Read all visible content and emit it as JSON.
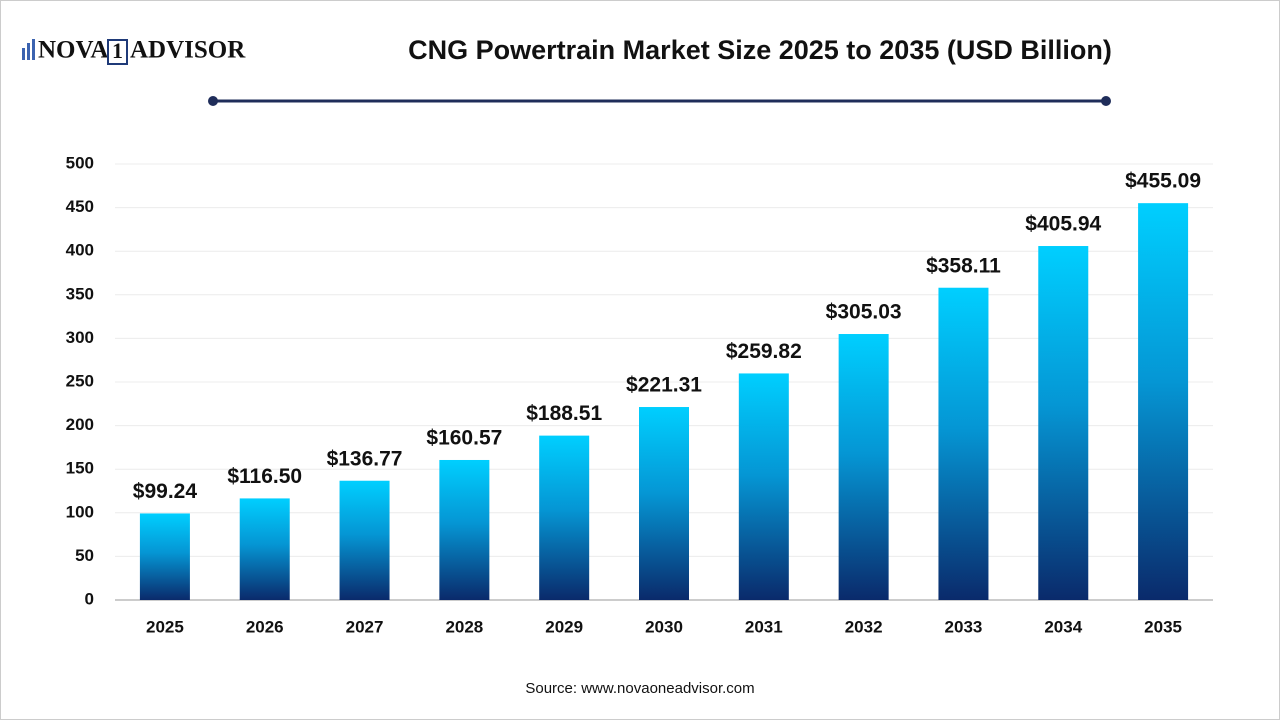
{
  "logo": {
    "left": "NOVA",
    "mark": "1",
    "right": "ADVISOR"
  },
  "chart_data": {
    "type": "bar",
    "title": "CNG Powertrain Market Size 2025 to 2035 (USD Billion)",
    "categories": [
      "2025",
      "2026",
      "2027",
      "2028",
      "2029",
      "2030",
      "2031",
      "2032",
      "2033",
      "2034",
      "2035"
    ],
    "values": [
      99.24,
      116.5,
      136.77,
      160.57,
      188.51,
      221.31,
      259.82,
      305.03,
      358.11,
      405.94,
      455.09
    ],
    "value_labels": [
      "$99.24",
      "$116.50",
      "$136.77",
      "$160.57",
      "$188.51",
      "$221.31",
      "$259.82",
      "$305.03",
      "$358.11",
      "$405.94",
      "$455.09"
    ],
    "color": [
      "#00cfff",
      "#0a2a6b"
    ],
    "ylim": [
      0,
      500
    ],
    "yticks": [
      0,
      50,
      100,
      150,
      200,
      250,
      300,
      350,
      400,
      450,
      500
    ],
    "grid": true,
    "source": "Source: www.novaoneadvisor.com"
  }
}
